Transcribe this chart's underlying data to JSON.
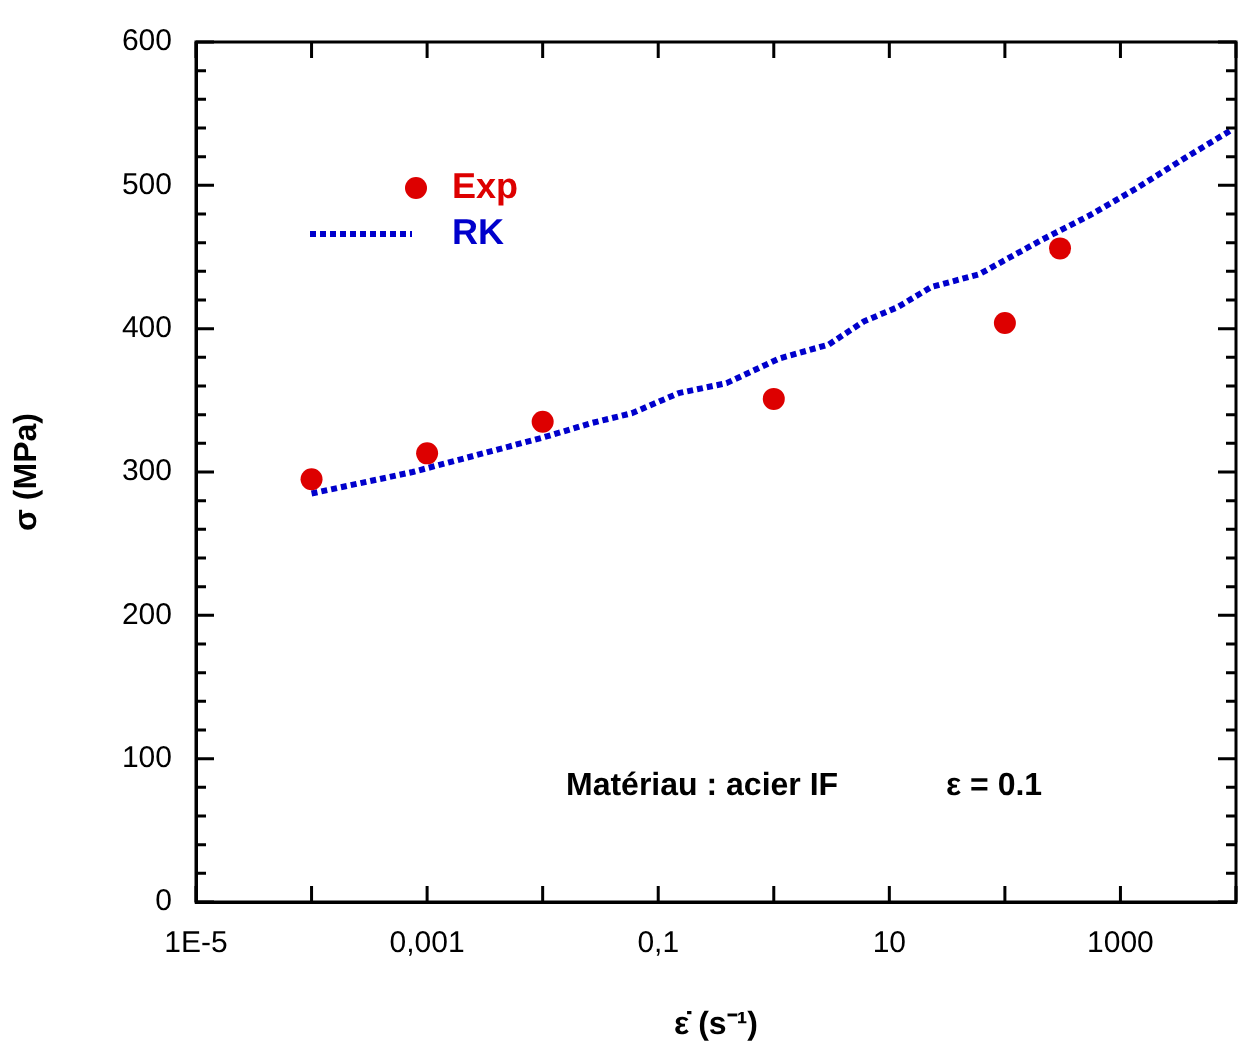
{
  "chart_data": {
    "type": "scatter",
    "xlabel": "ε̇ (s⁻¹)",
    "ylabel": "σ (MPa)",
    "log": "x",
    "xlim": [
      1e-05,
      10000
    ],
    "xticks": [
      {
        "value": 1e-05,
        "label": "1E-5"
      },
      {
        "value": 0.0001,
        "label": null
      },
      {
        "value": 0.001,
        "label": "0,001"
      },
      {
        "value": 0.01,
        "label": null
      },
      {
        "value": 0.1,
        "label": "0,1"
      },
      {
        "value": 1,
        "label": null
      },
      10,
      {
        "value": 100,
        "label": null
      },
      1000,
      {
        "value": 10000,
        "label": null
      }
    ],
    "ylim": [
      0,
      600
    ],
    "yticks": [
      0,
      {
        "value": 20,
        "label": null
      },
      {
        "value": 40,
        "label": null
      },
      {
        "value": 60,
        "label": null
      },
      {
        "value": 80,
        "label": null
      },
      100,
      {
        "value": 120,
        "label": null
      },
      {
        "value": 140,
        "label": null
      },
      {
        "value": 160,
        "label": null
      },
      {
        "value": 180,
        "label": null
      },
      200,
      {
        "value": 220,
        "label": null
      },
      {
        "value": 240,
        "label": null
      },
      {
        "value": 260,
        "label": null
      },
      {
        "value": 280,
        "label": null
      },
      300,
      {
        "value": 320,
        "label": null
      },
      {
        "value": 340,
        "label": null
      },
      {
        "value": 360,
        "label": null
      },
      {
        "value": 380,
        "label": null
      },
      400,
      {
        "value": 420,
        "label": null
      },
      {
        "value": 440,
        "label": null
      },
      {
        "value": 460,
        "label": null
      },
      {
        "value": 480,
        "label": null
      },
      500,
      {
        "value": 520,
        "label": null
      },
      {
        "value": 540,
        "label": null
      },
      {
        "value": 560,
        "label": null
      },
      {
        "value": 580,
        "label": null
      },
      600
    ],
    "grid": false,
    "legend": "top left",
    "annotations": [
      "Matériau : acier IF",
      "ε = 0.1"
    ],
    "series": [
      {
        "name": "Exp",
        "type": "scatter",
        "color": "#dd0000",
        "marker": "circle",
        "x": [
          0.0001,
          0.001,
          0.01,
          1,
          100,
          300
        ],
        "values": [
          295,
          313,
          335,
          351,
          404,
          456
        ]
      },
      {
        "name": "RK",
        "type": "line",
        "color": "#0000cc",
        "marker": "none",
        "line_style": "dotted",
        "x": [
          0.0001,
          0.00075,
          0.01,
          0.026,
          0.059,
          0.15,
          0.39,
          1.1,
          3,
          6,
          11.8,
          23,
          60,
          209,
          540,
          1380,
          3600,
          9300
        ],
        "values": [
          285,
          300,
          324,
          334,
          341,
          355,
          362,
          379,
          389,
          405,
          415,
          429,
          438,
          462,
          479,
          498,
          519,
          539
        ]
      }
    ]
  }
}
